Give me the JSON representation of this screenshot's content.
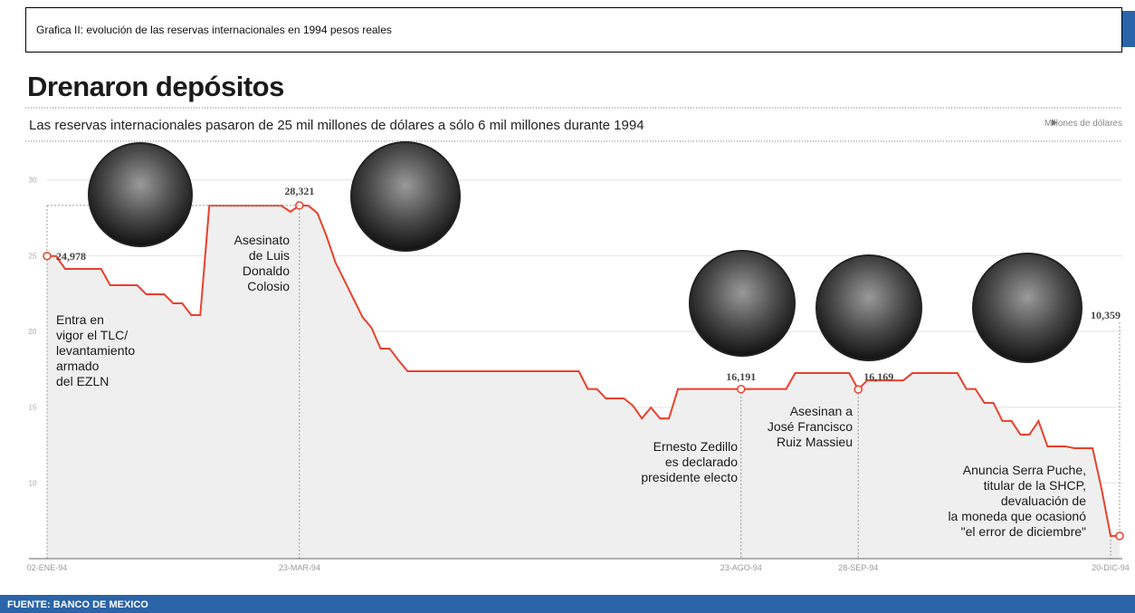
{
  "caption": "Grafica II: evolución de las reservas internacionales en 1994 pesos reales",
  "chart_data": {
    "type": "line",
    "title": "Drenaron depósitos",
    "subtitle": "Las reservas internacionales pasaron de 25 mil millones de dólares a sólo 6 mil millones durante 1994",
    "y_label": "Millones de dólares",
    "source": "FUENTE: BANCO DE MEXICO",
    "color": "#e8412c",
    "ylim": [
      5000,
      31000
    ],
    "yticks": [
      {
        "value": 10000,
        "label": "10"
      },
      {
        "value": 15000,
        "label": "15"
      },
      {
        "value": 20000,
        "label": "20"
      },
      {
        "value": 25000,
        "label": "25"
      },
      {
        "value": 30000,
        "label": "30"
      }
    ],
    "grid": true,
    "categories": [
      "02-ENE-94",
      null,
      null,
      null,
      null,
      null,
      null,
      null,
      null,
      null,
      null,
      null,
      null,
      null,
      null,
      null,
      null,
      null,
      null,
      null,
      null,
      null,
      null,
      null,
      null,
      null,
      null,
      null,
      "23-MAR-94",
      null,
      null,
      null,
      null,
      null,
      null,
      null,
      null,
      null,
      null,
      null,
      null,
      null,
      null,
      null,
      null,
      null,
      null,
      null,
      null,
      null,
      null,
      null,
      null,
      null,
      null,
      null,
      null,
      null,
      null,
      null,
      null,
      null,
      null,
      null,
      null,
      null,
      null,
      null,
      null,
      null,
      null,
      null,
      null,
      null,
      null,
      null,
      null,
      "23-AGO-94",
      null,
      null,
      null,
      null,
      null,
      null,
      null,
      null,
      null,
      null,
      null,
      null,
      "28-SEP-94",
      null,
      null,
      null,
      null,
      null,
      null,
      null,
      null,
      null,
      null,
      null,
      null,
      null,
      null,
      null,
      null,
      null,
      null,
      null,
      null,
      null,
      null,
      null,
      null,
      null,
      null,
      null,
      "20-DIC-94",
      null
    ],
    "values": [
      24978,
      24978,
      24126,
      24126,
      24126,
      24126,
      24126,
      23051,
      23051,
      23051,
      23051,
      22453,
      22453,
      22453,
      21855,
      21855,
      21078,
      21078,
      28300,
      28300,
      28300,
      28300,
      28300,
      28300,
      28300,
      28300,
      28300,
      27900,
      28321,
      28300,
      27800,
      26300,
      24550,
      23350,
      22150,
      20950,
      20240,
      18870,
      18870,
      18090,
      17370,
      17370,
      17370,
      17370,
      17370,
      17370,
      17370,
      17370,
      17370,
      17370,
      17370,
      17370,
      17370,
      17370,
      17370,
      17370,
      17370,
      17370,
      17370,
      17370,
      16200,
      16200,
      15580,
      15580,
      15580,
      15100,
      14260,
      14980,
      14260,
      14260,
      16200,
      16200,
      16200,
      16200,
      16200,
      16200,
      16200,
      16191,
      16200,
      16200,
      16200,
      16200,
      16200,
      17250,
      17250,
      17250,
      17250,
      17250,
      17250,
      17250,
      16169,
      16770,
      16770,
      16770,
      16770,
      16770,
      17250,
      17250,
      17250,
      17250,
      17250,
      17250,
      16200,
      16200,
      15280,
      15280,
      14090,
      14090,
      13190,
      13190,
      14090,
      12410,
      12410,
      12410,
      12290,
      12290,
      12290,
      9600,
      6500,
      6500
    ],
    "value_labels": [
      "24,978",
      null,
      null,
      null,
      null,
      null,
      null,
      null,
      null,
      null,
      null,
      null,
      null,
      null,
      null,
      null,
      null,
      null,
      null,
      null,
      null,
      null,
      null,
      null,
      null,
      null,
      null,
      null,
      "28,321",
      null,
      null,
      null,
      null,
      null,
      null,
      null,
      null,
      null,
      null,
      null,
      null,
      null,
      null,
      null,
      null,
      null,
      null,
      null,
      null,
      null,
      null,
      null,
      null,
      null,
      null,
      null,
      null,
      null,
      null,
      null,
      null,
      null,
      null,
      null,
      null,
      null,
      null,
      null,
      null,
      null,
      null,
      null,
      null,
      null,
      null,
      null,
      null,
      "16,191",
      null,
      null,
      null,
      null,
      null,
      null,
      null,
      null,
      null,
      null,
      null,
      null,
      "16,169",
      null,
      null,
      null,
      null,
      null,
      null,
      null,
      null,
      null,
      null,
      null,
      null,
      null,
      null,
      null,
      null,
      null,
      null,
      null,
      null,
      null,
      null,
      null,
      null,
      null,
      null,
      null,
      null,
      null
    ],
    "annotations": [
      {
        "lines": [
          "Entra en",
          "vigor el TLC/",
          "levantamiento",
          "armado",
          "del EZLN"
        ]
      },
      {
        "lines": [
          "Asesinato",
          "de Luis",
          "Donaldo",
          "Colosio"
        ]
      },
      {
        "lines": [
          "Ernesto Zedillo",
          "es declarado",
          "presidente electo"
        ]
      },
      {
        "lines": [
          "Asesinan a",
          "José Francisco",
          "Ruiz Massieu"
        ]
      },
      {
        "lines": [
          "Anuncia Serra Puche,",
          "titular de la SHCP,",
          "devaluación de",
          "la moneda que ocasionó",
          "\"el error de diciembre\""
        ]
      },
      {
        "lines": [
          "10,359"
        ]
      }
    ]
  }
}
